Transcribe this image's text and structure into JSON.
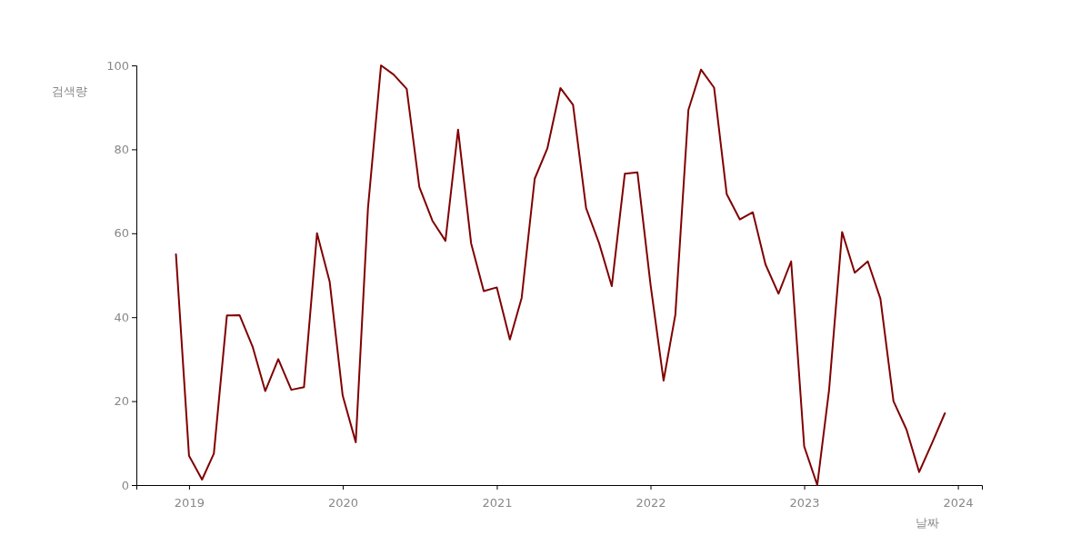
{
  "chart_data": {
    "type": "line",
    "xlabel": "날짜",
    "ylabel": "검색량",
    "x": [
      "2018-12",
      "2019-01",
      "2019-02",
      "2019-03",
      "2019-04",
      "2019-05",
      "2019-06",
      "2019-07",
      "2019-08",
      "2019-09",
      "2019-10",
      "2019-11",
      "2019-12",
      "2020-01",
      "2020-02",
      "2020-03",
      "2020-04",
      "2020-05",
      "2020-06",
      "2020-07",
      "2020-08",
      "2020-09",
      "2020-10",
      "2020-11",
      "2020-12",
      "2021-01",
      "2021-02",
      "2021-03",
      "2021-04",
      "2021-05",
      "2021-06",
      "2021-07",
      "2021-08",
      "2021-09",
      "2021-10",
      "2021-11",
      "2021-12",
      "2022-01",
      "2022-02",
      "2022-03",
      "2022-04",
      "2022-05",
      "2022-06",
      "2022-07",
      "2022-08",
      "2022-09",
      "2022-10",
      "2022-11",
      "2022-12",
      "2023-01",
      "2023-02",
      "2023-03",
      "2023-04",
      "2023-05",
      "2023-06",
      "2023-07",
      "2023-08",
      "2023-09",
      "2023-10",
      "2023-11",
      "2023-12"
    ],
    "series": [
      {
        "color": "#800000",
        "values": [
          55,
          7,
          1.3,
          7.5,
          40.4,
          40.5,
          33,
          22.4,
          30,
          22.7,
          23.3,
          60,
          48.5,
          21.3,
          10.2,
          66,
          100,
          97.8,
          94.4,
          71,
          63,
          58.2,
          84.7,
          57.6,
          46.2,
          47.1,
          34.7,
          44.6,
          73,
          80.2,
          94.6,
          90.6,
          66,
          57.6,
          47.4,
          74.2,
          74.5,
          47.8,
          24.9,
          40.6,
          89.4,
          99,
          94.7,
          69.3,
          63.3,
          65,
          52.6,
          45.6,
          53.3,
          9.2,
          0,
          22.6,
          60.3,
          50.6,
          53.3,
          44.4,
          20,
          13.2,
          3.1,
          10.1,
          17.1
        ]
      }
    ],
    "xlim": [
      "2018-08-29",
      "2024-02-27"
    ],
    "xticks": [
      "2019",
      "2020",
      "2021",
      "2022",
      "2023",
      "2024"
    ],
    "ylim": [
      0,
      100
    ],
    "yticks": [
      0,
      20,
      40,
      60,
      80,
      100
    ],
    "grid": false,
    "marker": "none",
    "line_style": "solid"
  }
}
